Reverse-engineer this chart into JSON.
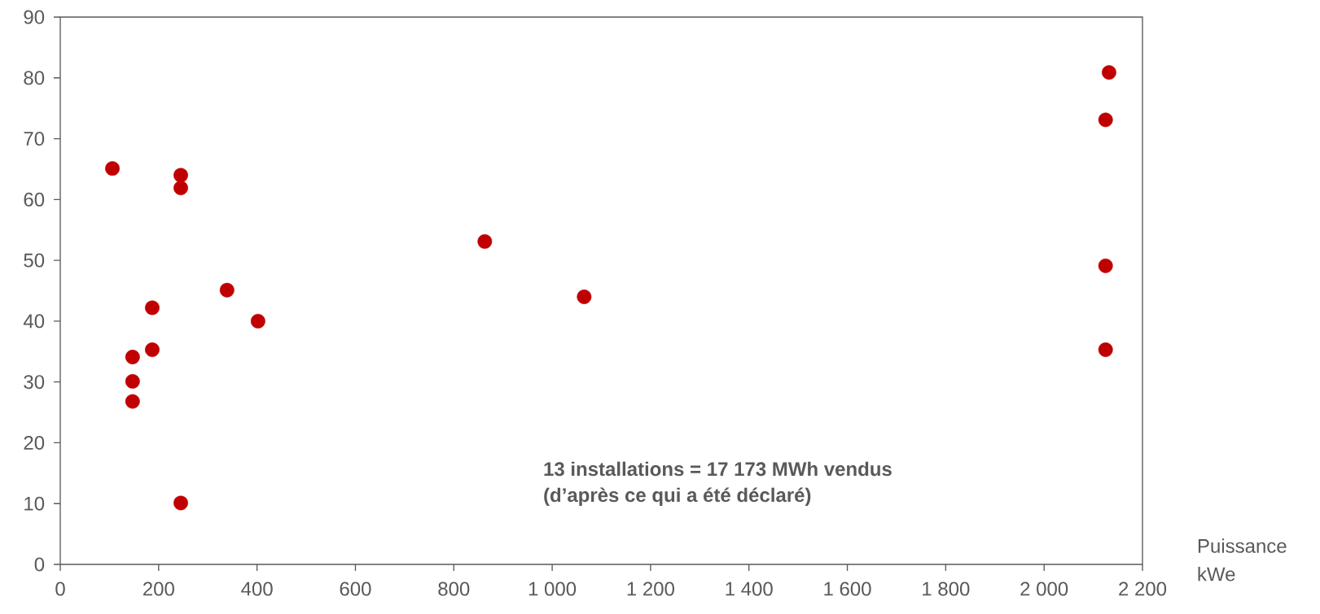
{
  "chart_data": {
    "type": "scatter",
    "xlabel": "Puissance kWe",
    "annotations": [
      "13 installations = 17 173 MWh vendus",
      "(d’après ce qui a été déclaré)"
    ],
    "series": [
      {
        "color": "#c00000",
        "x": [
          106,
          147,
          147,
          147,
          187,
          187,
          245,
          245,
          245,
          339,
          402,
          863,
          1065,
          2125,
          2132,
          2125,
          2125
        ],
        "values": [
          65.1,
          34.1,
          30.1,
          26.8,
          42.2,
          35.3,
          64.0,
          61.9,
          10.1,
          45.1,
          40.0,
          53.1,
          44.0,
          73.1,
          80.9,
          49.1,
          35.3
        ]
      }
    ],
    "grid": false,
    "xlim": [
      0,
      2200
    ],
    "ylim": [
      0,
      90
    ],
    "xticks": [
      0,
      200,
      400,
      600,
      800,
      {
        "value": 1000,
        "label": "1 000"
      },
      {
        "value": 1200,
        "label": "1 200"
      },
      {
        "value": 1400,
        "label": "1 400"
      },
      {
        "value": 1600,
        "label": "1 600"
      },
      {
        "value": 1800,
        "label": "1 800"
      },
      {
        "value": 2000,
        "label": "2 000"
      },
      {
        "value": 2200,
        "label": "2 200"
      }
    ],
    "yticks": [
      0,
      10,
      20,
      30,
      40,
      50,
      60,
      70,
      80,
      90
    ]
  }
}
